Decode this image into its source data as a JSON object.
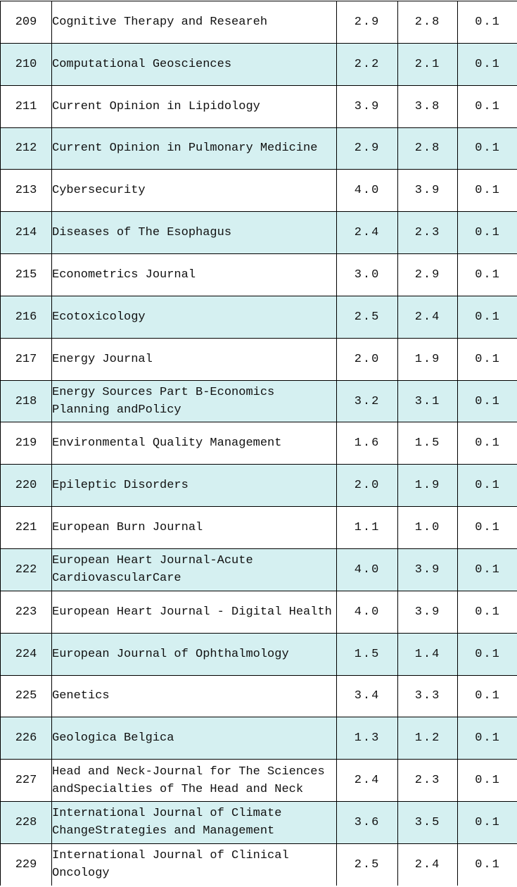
{
  "colors": {
    "row_shade": "#d5f0f1",
    "grid_line": "#000000",
    "text": "#111111"
  },
  "table": {
    "rows": [
      {
        "index": "209",
        "name_lines": [
          "Cognitive Therapy and Researeh"
        ],
        "v1": "2.9",
        "v2": "2.8",
        "v3": "0.1"
      },
      {
        "index": "210",
        "name_lines": [
          "Computational Geosciences"
        ],
        "v1": "2.2",
        "v2": "2.1",
        "v3": "0.1"
      },
      {
        "index": "211",
        "name_lines": [
          "Current Opinion in Lipidology"
        ],
        "v1": "3.9",
        "v2": "3.8",
        "v3": "0.1"
      },
      {
        "index": "212",
        "name_lines": [
          "Current Opinion in Pulmonary Medicine"
        ],
        "v1": "2.9",
        "v2": "2.8",
        "v3": "0.1"
      },
      {
        "index": "213",
        "name_lines": [
          "Cybersecurity"
        ],
        "v1": "4.0",
        "v2": "3.9",
        "v3": "0.1"
      },
      {
        "index": "214",
        "name_lines": [
          "Diseases of The Esophagus"
        ],
        "v1": "2.4",
        "v2": "2.3",
        "v3": "0.1"
      },
      {
        "index": "215",
        "name_lines": [
          "Econometrics Journal"
        ],
        "v1": "3.0",
        "v2": "2.9",
        "v3": "0.1"
      },
      {
        "index": "216",
        "name_lines": [
          "Ecotoxicology"
        ],
        "v1": "2.5",
        "v2": "2.4",
        "v3": "0.1"
      },
      {
        "index": "217",
        "name_lines": [
          "Energy Journal"
        ],
        "v1": "2.0",
        "v2": "1.9",
        "v3": "0.1"
      },
      {
        "index": "218",
        "name_lines": [
          "Energy Sources Part B-Economics",
          "Planning andPolicy"
        ],
        "v1": "3.2",
        "v2": "3.1",
        "v3": "0.1"
      },
      {
        "index": "219",
        "name_lines": [
          "Environmental Quality Management"
        ],
        "v1": "1.6",
        "v2": "1.5",
        "v3": "0.1"
      },
      {
        "index": "220",
        "name_lines": [
          "Epileptic Disorders"
        ],
        "v1": "2.0",
        "v2": "1.9",
        "v3": "0.1"
      },
      {
        "index": "221",
        "name_lines": [
          "European Burn Journal"
        ],
        "v1": "1.1",
        "v2": "1.0",
        "v3": "0.1"
      },
      {
        "index": "222",
        "name_lines": [
          "European Heart Journal-Acute",
          "CardiovascularCare"
        ],
        "v1": "4.0",
        "v2": "3.9",
        "v3": "0.1"
      },
      {
        "index": "223",
        "name_lines": [
          "European Heart Journal - Digital Health"
        ],
        "v1": "4.0",
        "v2": "3.9",
        "v3": "0.1"
      },
      {
        "index": "224",
        "name_lines": [
          "European Journal of Ophthalmology"
        ],
        "v1": "1.5",
        "v2": "1.4",
        "v3": "0.1"
      },
      {
        "index": "225",
        "name_lines": [
          "Genetics"
        ],
        "v1": "3.4",
        "v2": "3.3",
        "v3": "0.1"
      },
      {
        "index": "226",
        "name_lines": [
          "Geologica Belgica"
        ],
        "v1": "1.3",
        "v2": "1.2",
        "v3": "0.1"
      },
      {
        "index": "227",
        "name_lines": [
          "Head and Neck-Journal for The Sciences",
          "andSpecialties of The Head and Neck"
        ],
        "v1": "2.4",
        "v2": "2.3",
        "v3": "0.1"
      },
      {
        "index": "228",
        "name_lines": [
          "International Journal of Climate",
          "ChangeStrategies and Management"
        ],
        "v1": "3.6",
        "v2": "3.5",
        "v3": "0.1"
      },
      {
        "index": "229",
        "name_lines": [
          "International Journal of Clinical",
          "Oncology"
        ],
        "v1": "2.5",
        "v2": "2.4",
        "v3": "0.1"
      }
    ]
  }
}
